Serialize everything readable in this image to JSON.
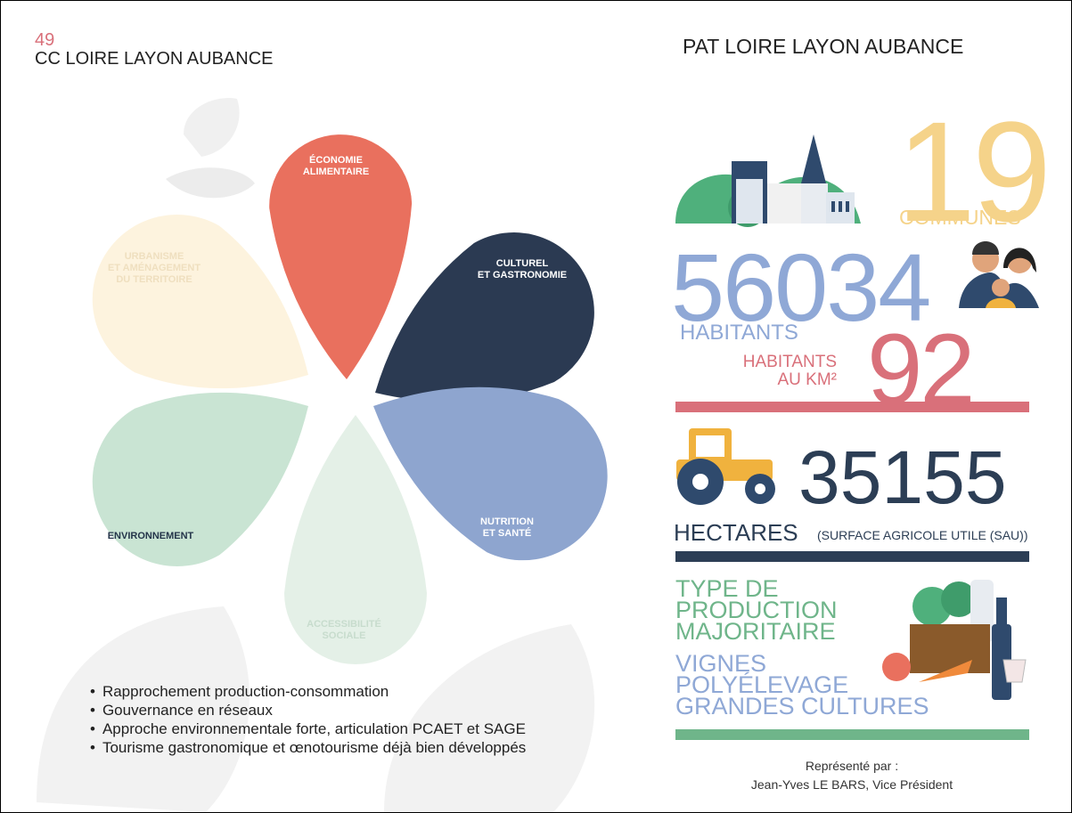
{
  "header": {
    "code": "49",
    "title": "CC LOIRE LAYON AUBANCE"
  },
  "petals": [
    {
      "label": [
        "ÉCONOMIE",
        "ALIMENTAIRE"
      ]
    },
    {
      "label": [
        "CULTUREL",
        "ET GASTRONOMIE"
      ]
    },
    {
      "label": [
        "NUTRITION",
        "ET SANTÉ"
      ]
    },
    {
      "label": [
        "ACCESSIBILITÉ",
        "SOCIALE"
      ]
    },
    {
      "label": [
        "ENVIRONNEMENT"
      ]
    },
    {
      "label": [
        "URBANISME",
        "ET AMÉNAGEMENT",
        "DU TERRITOIRE"
      ]
    }
  ],
  "bullets": [
    "Rapprochement production-consommation",
    "Gouvernance en réseaux",
    "Approche environnementale forte, articulation PCAET et SAGE",
    "Tourisme gastronomique et œnotourisme déjà bien développés"
  ],
  "summary": {
    "title": "PAT LOIRE LAYON AUBANCE",
    "communes": {
      "value": 19,
      "label": "COMMUNES"
    },
    "population": {
      "value": 56034,
      "label": "HABITANTS"
    },
    "density": {
      "value": 92,
      "label": [
        "HABITANTS",
        "AU KM²"
      ]
    },
    "farmland": {
      "value": 35155,
      "label": "HECTARES",
      "note": "(SURFACE AGRICOLE UTILE (SAU))"
    },
    "production": {
      "title": [
        "TYPE DE",
        "PRODUCTION",
        "MAJORITAIRE"
      ],
      "items": [
        "VIGNES",
        "POLYÉLEVAGE",
        "GRANDES CULTURES"
      ]
    }
  },
  "footer": [
    "Représenté par :",
    "Jean-Yves LE BARS, Vice Président"
  ]
}
